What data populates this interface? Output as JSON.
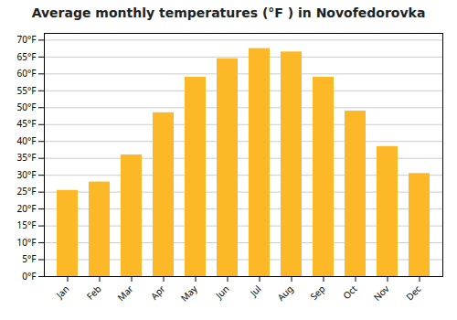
{
  "chart_data": {
    "type": "bar",
    "title": "Average monthly temperatures (°F ) in Novofedorovka",
    "categories": [
      "Jan",
      "Feb",
      "Mar",
      "Apr",
      "May",
      "Jun",
      "Jul",
      "Aug",
      "Sep",
      "Oct",
      "Nov",
      "Dec"
    ],
    "values": [
      25.5,
      28.0,
      36.0,
      48.5,
      59.0,
      64.5,
      67.5,
      66.5,
      59.0,
      49.0,
      38.5,
      30.5
    ],
    "color": "#FDB827",
    "ylim": [
      0,
      72
    ],
    "yticks": [
      {
        "value": 0,
        "label": "0°F"
      },
      {
        "value": 5,
        "label": "5°F"
      },
      {
        "value": 10,
        "label": "10°F"
      },
      {
        "value": 15,
        "label": "15°F"
      },
      {
        "value": 20,
        "label": "20°F"
      },
      {
        "value": 25,
        "label": "25°F"
      },
      {
        "value": 30,
        "label": "30°F"
      },
      {
        "value": 35,
        "label": "35°F"
      },
      {
        "value": 40,
        "label": "40°F"
      },
      {
        "value": 45,
        "label": "45°F"
      },
      {
        "value": 50,
        "label": "50°F"
      },
      {
        "value": 55,
        "label": "55°F"
      },
      {
        "value": 60,
        "label": "60°F"
      },
      {
        "value": 65,
        "label": "65°F"
      },
      {
        "value": 70,
        "label": "70°F"
      }
    ],
    "grid": true
  }
}
